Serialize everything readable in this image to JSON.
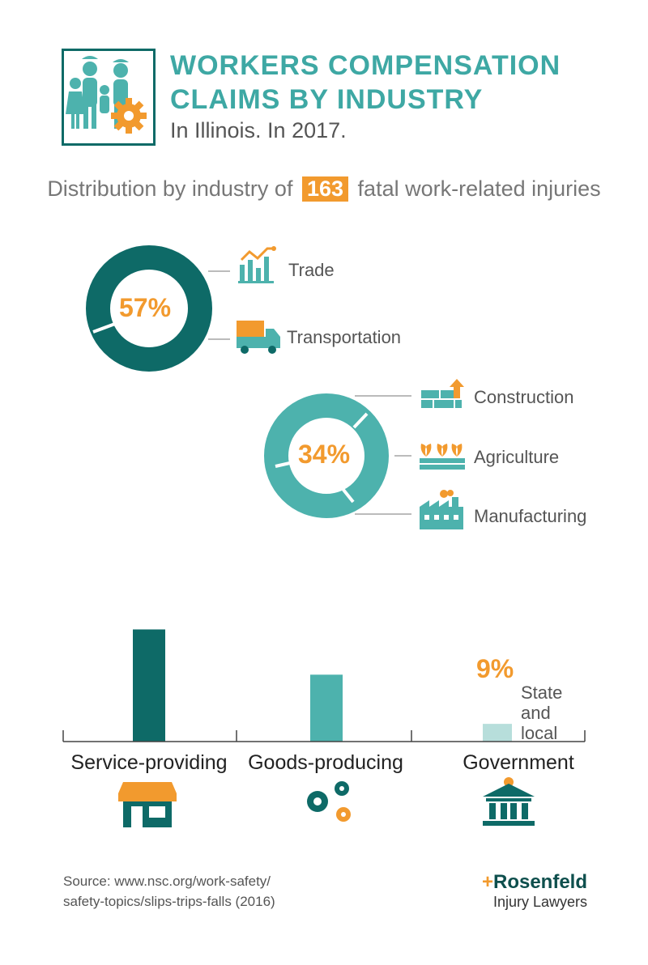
{
  "header": {
    "title_line1": "WORKERS COMPENSATION",
    "title_line2": "CLAIMS BY INDUSTRY",
    "subtitle": "In Illinois. In 2017."
  },
  "distribution": {
    "prefix": "Distribution by industry of",
    "total": "163",
    "suffix": "fatal work-related injuries"
  },
  "colors": {
    "dark_teal": "#0e6a67",
    "teal": "#4db2ad",
    "light_teal": "#b7dedb",
    "orange": "#f29a2e"
  },
  "chart_data": {
    "type": "bar",
    "categories": [
      "Service-providing",
      "Goods-producing",
      "Government"
    ],
    "values": [
      57,
      34,
      9
    ],
    "value_labels": [
      "57%",
      "34%",
      "9%"
    ],
    "breakdown": {
      "Service-providing": [
        "Trade",
        "Transportation"
      ],
      "Goods-producing": [
        "Construction",
        "Agriculture",
        "Manufacturing"
      ],
      "Government": [
        "State and local"
      ]
    }
  },
  "legend": {
    "trade": {
      "label": "Trade",
      "icon": "chart-trend-icon"
    },
    "transportation": {
      "label": "Transportation",
      "icon": "truck-icon"
    },
    "construction": {
      "label": "Construction",
      "icon": "bricks-icon"
    },
    "agriculture": {
      "label": "Agriculture",
      "icon": "crops-icon"
    },
    "manufacturing": {
      "label": "Manufacturing",
      "icon": "factory-icon"
    }
  },
  "government_label": {
    "line1": "State",
    "line2": "and",
    "line3": "local"
  },
  "category_icons": [
    "storefront-icon",
    "gears-icon",
    "government-building-icon"
  ],
  "source": {
    "line1": "Source: www.nsc.org/work-safety/",
    "line2": "safety-topics/slips-trips-falls (2016)"
  },
  "brand": {
    "name_plus": "+",
    "name_rest": "Rosenfeld",
    "sub": "Injury Lawyers"
  }
}
